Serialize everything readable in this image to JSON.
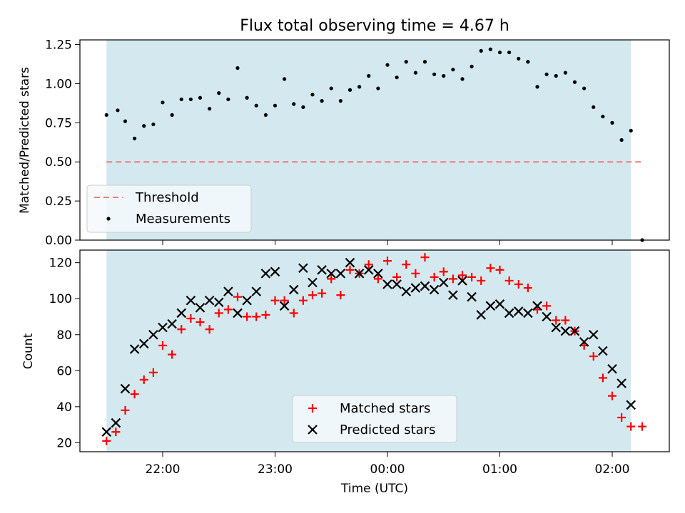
{
  "chart_data": {
    "title": "Flux total observing time = 4.67 h",
    "xlabel": "Time (UTC)",
    "x_ticks": [
      "22:00",
      "23:00",
      "00:00",
      "01:00",
      "02:00"
    ],
    "observing_window": [
      "21:30",
      "02:10"
    ],
    "colors": {
      "window_fill": "#d4e9ef",
      "threshold": "#f07a7a",
      "matched": "#ff0000",
      "predicted": "#000000",
      "measurements": "#000000"
    },
    "panels": [
      {
        "type": "scatter",
        "ylabel": "Matched/Predicted stars",
        "ylim": [
          0,
          1.28
        ],
        "y_ticks": [
          "0.00",
          "0.25",
          "0.50",
          "0.75",
          "1.00",
          "1.25"
        ],
        "threshold": {
          "name": "Threshold",
          "y": 0.5,
          "x_range": [
            "21:30",
            "02:16"
          ]
        },
        "legend": [
          "Threshold",
          "Measurements"
        ],
        "legend_position": "lower-left",
        "series": [
          {
            "name": "Measurements",
            "x": [
              "21:30",
              "21:36",
              "21:40",
              "21:45",
              "21:50",
              "21:55",
              "22:00",
              "22:05",
              "22:10",
              "22:15",
              "22:20",
              "22:25",
              "22:30",
              "22:35",
              "22:40",
              "22:45",
              "22:50",
              "22:55",
              "23:00",
              "23:05",
              "23:10",
              "23:15",
              "23:20",
              "23:25",
              "23:30",
              "23:35",
              "23:40",
              "23:45",
              "23:50",
              "23:55",
              "00:00",
              "00:05",
              "00:10",
              "00:15",
              "00:20",
              "00:25",
              "00:30",
              "00:35",
              "00:40",
              "00:45",
              "00:50",
              "00:55",
              "01:00",
              "01:05",
              "01:10",
              "01:15",
              "01:20",
              "01:25",
              "01:30",
              "01:35",
              "01:40",
              "01:45",
              "01:50",
              "01:55",
              "02:00",
              "02:05",
              "02:10",
              "02:16"
            ],
            "y": [
              0.8,
              0.83,
              0.76,
              0.65,
              0.73,
              0.74,
              0.88,
              0.8,
              0.9,
              0.9,
              0.91,
              0.84,
              0.94,
              0.9,
              1.1,
              0.91,
              0.86,
              0.8,
              0.86,
              1.03,
              0.87,
              0.85,
              0.93,
              0.89,
              0.97,
              0.89,
              0.96,
              0.98,
              1.05,
              0.97,
              1.12,
              1.04,
              1.14,
              1.07,
              1.14,
              1.06,
              1.05,
              1.09,
              1.03,
              1.11,
              1.21,
              1.22,
              1.2,
              1.2,
              1.16,
              1.14,
              0.98,
              1.06,
              1.05,
              1.07,
              1.01,
              0.97,
              0.85,
              0.79,
              0.75,
              0.64,
              0.7,
              0.0
            ]
          }
        ]
      },
      {
        "type": "scatter",
        "ylabel": "Count",
        "ylim": [
          15,
          127
        ],
        "y_ticks": [
          "20",
          "40",
          "60",
          "80",
          "100",
          "120"
        ],
        "legend": [
          "Matched stars",
          "Predicted stars"
        ],
        "legend_position": "lower-center",
        "series": [
          {
            "name": "Matched stars",
            "marker": "+",
            "x": [
              "21:30",
              "21:35",
              "21:40",
              "21:45",
              "21:50",
              "21:55",
              "22:00",
              "22:05",
              "22:10",
              "22:15",
              "22:20",
              "22:25",
              "22:30",
              "22:35",
              "22:40",
              "22:45",
              "22:50",
              "22:55",
              "23:00",
              "23:05",
              "23:10",
              "23:15",
              "23:20",
              "23:25",
              "23:30",
              "23:35",
              "23:40",
              "23:45",
              "23:50",
              "23:55",
              "00:00",
              "00:05",
              "00:10",
              "00:15",
              "00:20",
              "00:25",
              "00:30",
              "00:35",
              "00:40",
              "00:45",
              "00:50",
              "00:55",
              "01:00",
              "01:05",
              "01:10",
              "01:15",
              "01:20",
              "01:25",
              "01:30",
              "01:35",
              "01:40",
              "01:45",
              "01:50",
              "01:55",
              "02:00",
              "02:05",
              "02:10",
              "02:16"
            ],
            "y": [
              21,
              26,
              38,
              47,
              55,
              59,
              74,
              69,
              83,
              89,
              87,
              83,
              92,
              94,
              101,
              90,
              90,
              91,
              99,
              99,
              92,
              99,
              102,
              103,
              111,
              102,
              116,
              114,
              119,
              111,
              121,
              112,
              119,
              114,
              123,
              112,
              115,
              111,
              113,
              112,
              110,
              117,
              116,
              110,
              108,
              106,
              94,
              96,
              88,
              88,
              82,
              74,
              68,
              56,
              46,
              34,
              29,
              29
            ]
          },
          {
            "name": "Predicted stars",
            "marker": "x",
            "x": [
              "21:30",
              "21:35",
              "21:40",
              "21:45",
              "21:50",
              "21:55",
              "22:00",
              "22:05",
              "22:10",
              "22:15",
              "22:20",
              "22:25",
              "22:30",
              "22:35",
              "22:40",
              "22:45",
              "22:50",
              "22:55",
              "23:00",
              "23:05",
              "23:10",
              "23:15",
              "23:20",
              "23:25",
              "23:30",
              "23:35",
              "23:40",
              "23:45",
              "23:50",
              "23:55",
              "00:00",
              "00:05",
              "00:10",
              "00:15",
              "00:20",
              "00:25",
              "00:30",
              "00:35",
              "00:40",
              "00:45",
              "00:50",
              "00:55",
              "01:00",
              "01:05",
              "01:10",
              "01:15",
              "01:20",
              "01:25",
              "01:30",
              "01:35",
              "01:40",
              "01:45",
              "01:50",
              "01:55",
              "02:00",
              "02:05",
              "02:10"
            ],
            "y": [
              26,
              31,
              50,
              72,
              75,
              80,
              84,
              86,
              92,
              99,
              95,
              99,
              98,
              104,
              92,
              99,
              104,
              114,
              115,
              96,
              105,
              117,
              109,
              116,
              114,
              114,
              120,
              114,
              116,
              114,
              108,
              108,
              104,
              106,
              107,
              105,
              109,
              102,
              110,
              101,
              91,
              96,
              97,
              92,
              93,
              92,
              96,
              90,
              84,
              82,
              82,
              76,
              80,
              71,
              61,
              53,
              41
            ]
          }
        ]
      }
    ]
  }
}
